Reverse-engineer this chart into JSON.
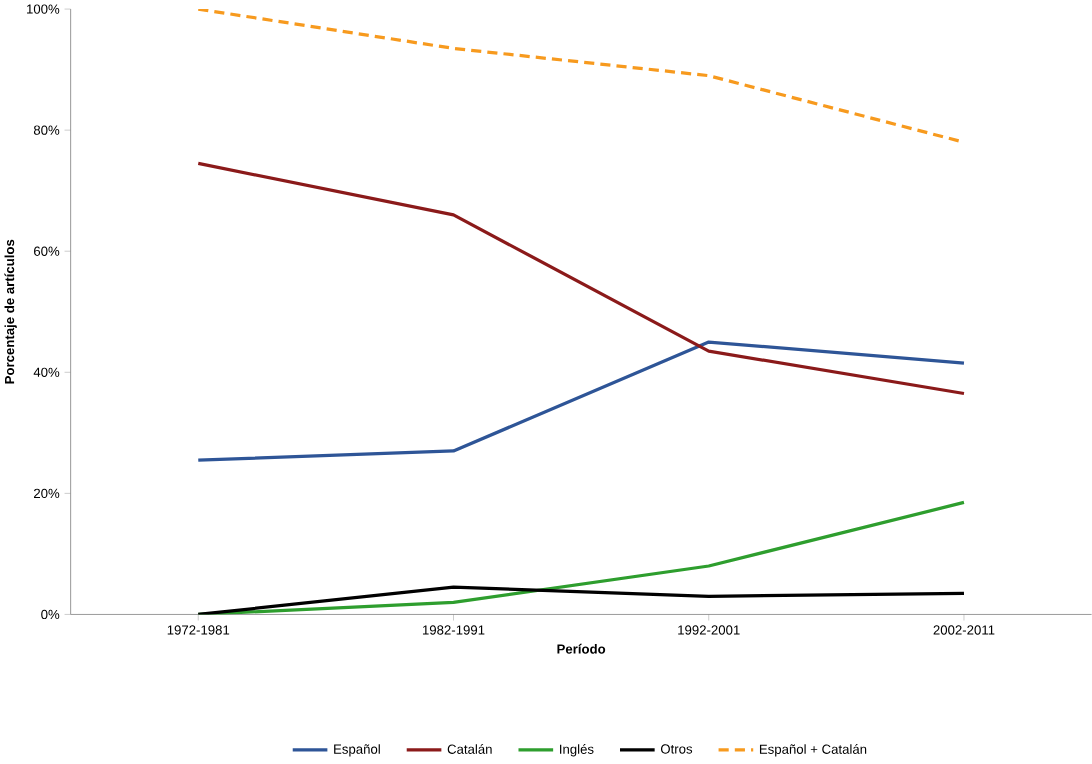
{
  "chart_data": {
    "type": "line",
    "xlabel": "Período",
    "ylabel": "Porcentaje de artículos",
    "categories": [
      "1972-1981",
      "1982-1991",
      "1992-2001",
      "2002-2011"
    ],
    "series": [
      {
        "name": "Español",
        "color": "#2e5597",
        "values": [
          25.5,
          27,
          45,
          41.5
        ]
      },
      {
        "name": "Catalán",
        "color": "#8b1a1a",
        "values": [
          74.5,
          66,
          43.5,
          36.5
        ]
      },
      {
        "name": "Inglés",
        "color": "#2e9e2e",
        "values": [
          0,
          2,
          8,
          18.5
        ]
      },
      {
        "name": "Otros",
        "color": "#000000",
        "values": [
          0,
          4.5,
          3,
          3.5
        ]
      },
      {
        "name": "Español + Catalán",
        "color": "#f79a1e",
        "line_style": "dashed",
        "values": [
          100,
          93.5,
          89,
          78
        ]
      }
    ],
    "ylim": [
      0,
      100
    ],
    "yticks": [
      {
        "value": 0,
        "label": "0%"
      },
      {
        "value": 20,
        "label": "20%"
      },
      {
        "value": 40,
        "label": "40%"
      },
      {
        "value": 60,
        "label": "60%"
      },
      {
        "value": 80,
        "label": "80%"
      },
      {
        "value": 100,
        "label": "100%"
      }
    ],
    "grid": false,
    "legend": "bottom",
    "marker": "none"
  }
}
